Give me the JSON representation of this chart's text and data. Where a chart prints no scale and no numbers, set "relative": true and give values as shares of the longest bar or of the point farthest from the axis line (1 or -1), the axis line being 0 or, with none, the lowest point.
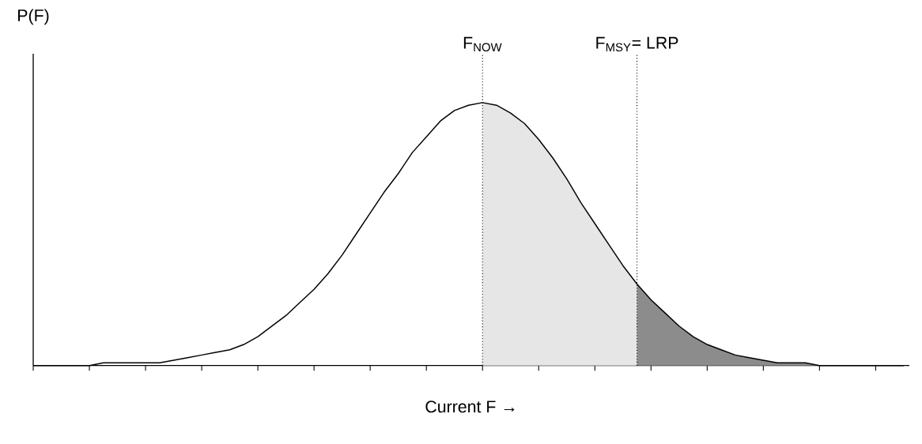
{
  "chart_data": {
    "type": "line",
    "relative": true,
    "xlabel": "Current F →",
    "ylabel": "P(F)",
    "categories": [
      null,
      null,
      null,
      null,
      null,
      null,
      null,
      null,
      null,
      null,
      null,
      null,
      null,
      null,
      null,
      null,
      null,
      null,
      null,
      null,
      null,
      null,
      null,
      null,
      null,
      null,
      null,
      null,
      null,
      null,
      null,
      null,
      null,
      null,
      null,
      null,
      null,
      null,
      null,
      null,
      null,
      null,
      null,
      null,
      null,
      null,
      null,
      null,
      null,
      null,
      null,
      null,
      null,
      null,
      null,
      null,
      null,
      null,
      null,
      null,
      null,
      null,
      null
    ],
    "series": [
      {
        "type": "area",
        "color": "#e6e6e6",
        "values": [
          null,
          null,
          null,
          null,
          null,
          null,
          null,
          null,
          null,
          null,
          null,
          null,
          null,
          null,
          null,
          null,
          null,
          null,
          null,
          null,
          null,
          null,
          null,
          null,
          null,
          null,
          null,
          null,
          null,
          null,
          null,
          null,
          1,
          0.99,
          0.96,
          0.92,
          0.86,
          0.79,
          0.71,
          0.62,
          0.54,
          0.46,
          0.38,
          0.31,
          null,
          null,
          null,
          null,
          null,
          null,
          null,
          null,
          null,
          null,
          null,
          null,
          null,
          null,
          null,
          null,
          null,
          null,
          null
        ]
      },
      {
        "type": "area",
        "color": "#8c8c8c",
        "values": [
          null,
          null,
          null,
          null,
          null,
          null,
          null,
          null,
          null,
          null,
          null,
          null,
          null,
          null,
          null,
          null,
          null,
          null,
          null,
          null,
          null,
          null,
          null,
          null,
          null,
          null,
          null,
          null,
          null,
          null,
          null,
          null,
          null,
          null,
          null,
          null,
          null,
          null,
          null,
          null,
          null,
          null,
          null,
          0.31,
          0.25,
          0.2,
          0.15,
          0.11,
          0.08,
          0.06,
          0.04,
          0.03,
          0.02,
          0.01,
          0.01,
          0.01,
          0,
          0,
          0,
          0,
          0,
          0,
          0
        ]
      },
      {
        "color": "#000000",
        "values": [
          0,
          0,
          0,
          0,
          0,
          0.01,
          0.01,
          0.01,
          0.01,
          0.01,
          0.02,
          0.03,
          0.04,
          0.05,
          0.06,
          0.08,
          0.11,
          0.15,
          0.19,
          0.24,
          0.29,
          0.35,
          0.42,
          0.5,
          0.58,
          0.66,
          0.73,
          0.81,
          0.87,
          0.93,
          0.97,
          0.99,
          1,
          0.99,
          0.96,
          0.92,
          0.86,
          0.79,
          0.71,
          0.62,
          0.54,
          0.46,
          0.38,
          0.31,
          0.25,
          0.2,
          0.15,
          0.11,
          0.08,
          0.06,
          0.04,
          0.03,
          0.02,
          0.01,
          0.01,
          0.01,
          0,
          0,
          0,
          0,
          0,
          0,
          0
        ]
      }
    ],
    "annotations": [
      "F$_{NOW}$",
      "F$_{MSY}$= LRP"
    ]
  }
}
